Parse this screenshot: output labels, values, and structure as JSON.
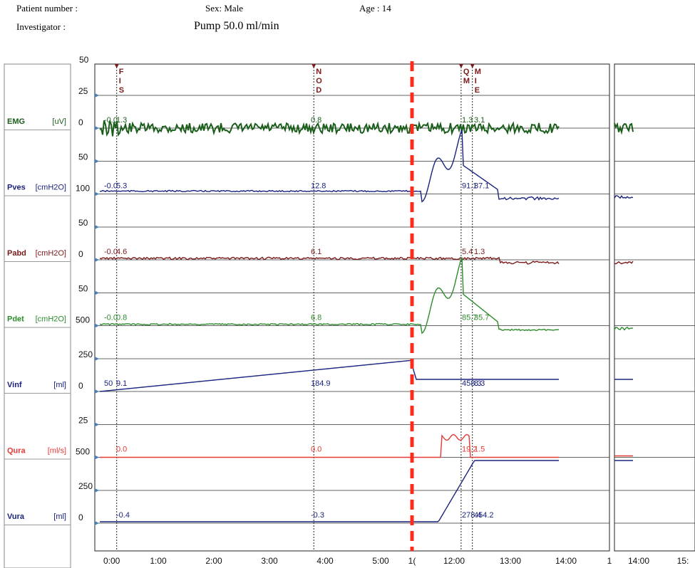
{
  "header": {
    "patient_number": "Patient number :",
    "sex": "Sex: Male",
    "age": "Age : 14",
    "investigator": "Investigator :",
    "pump": "Pump 50.0 ml/min"
  },
  "chart_data": {
    "type": "line",
    "x_ticks": [
      "0:00",
      "1:00",
      "2:00",
      "3:00",
      "4:00",
      "5:00",
      "1(",
      "12:00",
      "13:00",
      "14:00",
      "1",
      "14:00",
      "15:"
    ],
    "top_scale_label": "50",
    "markers": [
      {
        "label": "F\nI\nS",
        "time": 0.3
      },
      {
        "label": "N\nO\nD",
        "time": 3.8
      },
      {
        "label": "Q\nM",
        "time": 6.1
      },
      {
        "label": "M\nI\nE",
        "time": 6.3
      }
    ],
    "channels": [
      {
        "name": "EMG",
        "unit": "[uV]",
        "color": "#1b5e1b",
        "ticks": [
          "25",
          "0"
        ],
        "values": [
          {
            "t": 0.1,
            "v": "-0.0"
          },
          {
            "t": 0.3,
            "v": "1.3"
          },
          {
            "t": 3.8,
            "v": "0.8"
          },
          {
            "t": 6.1,
            "v": "1.3"
          },
          {
            "t": 6.35,
            "v": "3.1"
          }
        ],
        "profile": "emg"
      },
      {
        "name": "Pves",
        "unit": "[cmH2O]",
        "color": "#1a237e",
        "ticks": [
          "50",
          "100"
        ],
        "values": [
          {
            "t": 0.1,
            "v": "-0.0"
          },
          {
            "t": 0.3,
            "v": "5.3"
          },
          {
            "t": 3.8,
            "v": "12.8"
          },
          {
            "t": 6.1,
            "v": "91.1"
          },
          {
            "t": 6.3,
            "v": "37.1"
          }
        ],
        "profile": "pves"
      },
      {
        "name": "Pabd",
        "unit": "[cmH2O]",
        "color": "#7b1a1a",
        "ticks": [
          "50",
          "0"
        ],
        "values": [
          {
            "t": 0.1,
            "v": "-0.0"
          },
          {
            "t": 0.3,
            "v": "4.6"
          },
          {
            "t": 3.8,
            "v": "6.1"
          },
          {
            "t": 6.1,
            "v": "5.4"
          },
          {
            "t": 6.35,
            "v": "1.3"
          }
        ],
        "profile": "pabd"
      },
      {
        "name": "Pdet",
        "unit": "[cmH2O]",
        "color": "#2e8b2e",
        "ticks": [
          "50",
          "500"
        ],
        "values": [
          {
            "t": 0.1,
            "v": "-0.0"
          },
          {
            "t": 0.3,
            "v": "0.8"
          },
          {
            "t": 3.8,
            "v": "6.8"
          },
          {
            "t": 6.1,
            "v": "85.7"
          },
          {
            "t": 6.3,
            "v": "35.7"
          }
        ],
        "profile": "pdet"
      },
      {
        "name": "Vinf",
        "unit": "[ml]",
        "color": "#1a237e",
        "ticks": [
          "250",
          "0"
        ],
        "values": [
          {
            "t": 0.1,
            "v": "50"
          },
          {
            "t": 0.3,
            "v": "9.1"
          },
          {
            "t": 3.8,
            "v": "184.9"
          },
          {
            "t": 6.1,
            "v": "458.3"
          },
          {
            "t": 6.3,
            "v": "8.3"
          }
        ],
        "profile": "vinf"
      },
      {
        "name": "Qura",
        "unit": "[ml/s]",
        "color": "#e53935",
        "ticks": [
          "25",
          "500"
        ],
        "values": [
          {
            "t": 0.3,
            "v": "0.0"
          },
          {
            "t": 3.8,
            "v": "0.0"
          },
          {
            "t": 6.1,
            "v": "19.2"
          },
          {
            "t": 6.3,
            "v": "1.5"
          }
        ],
        "profile": "qura"
      },
      {
        "name": "Vura",
        "unit": "[ml]",
        "color": "#1a237e",
        "ticks": [
          "250",
          "0"
        ],
        "values": [
          {
            "t": 0.3,
            "v": "-0.4"
          },
          {
            "t": 3.8,
            "v": "-0.3"
          },
          {
            "t": 6.1,
            "v": "278.4"
          },
          {
            "t": 6.3,
            "v": "454.2"
          }
        ],
        "profile": "vura"
      }
    ]
  }
}
